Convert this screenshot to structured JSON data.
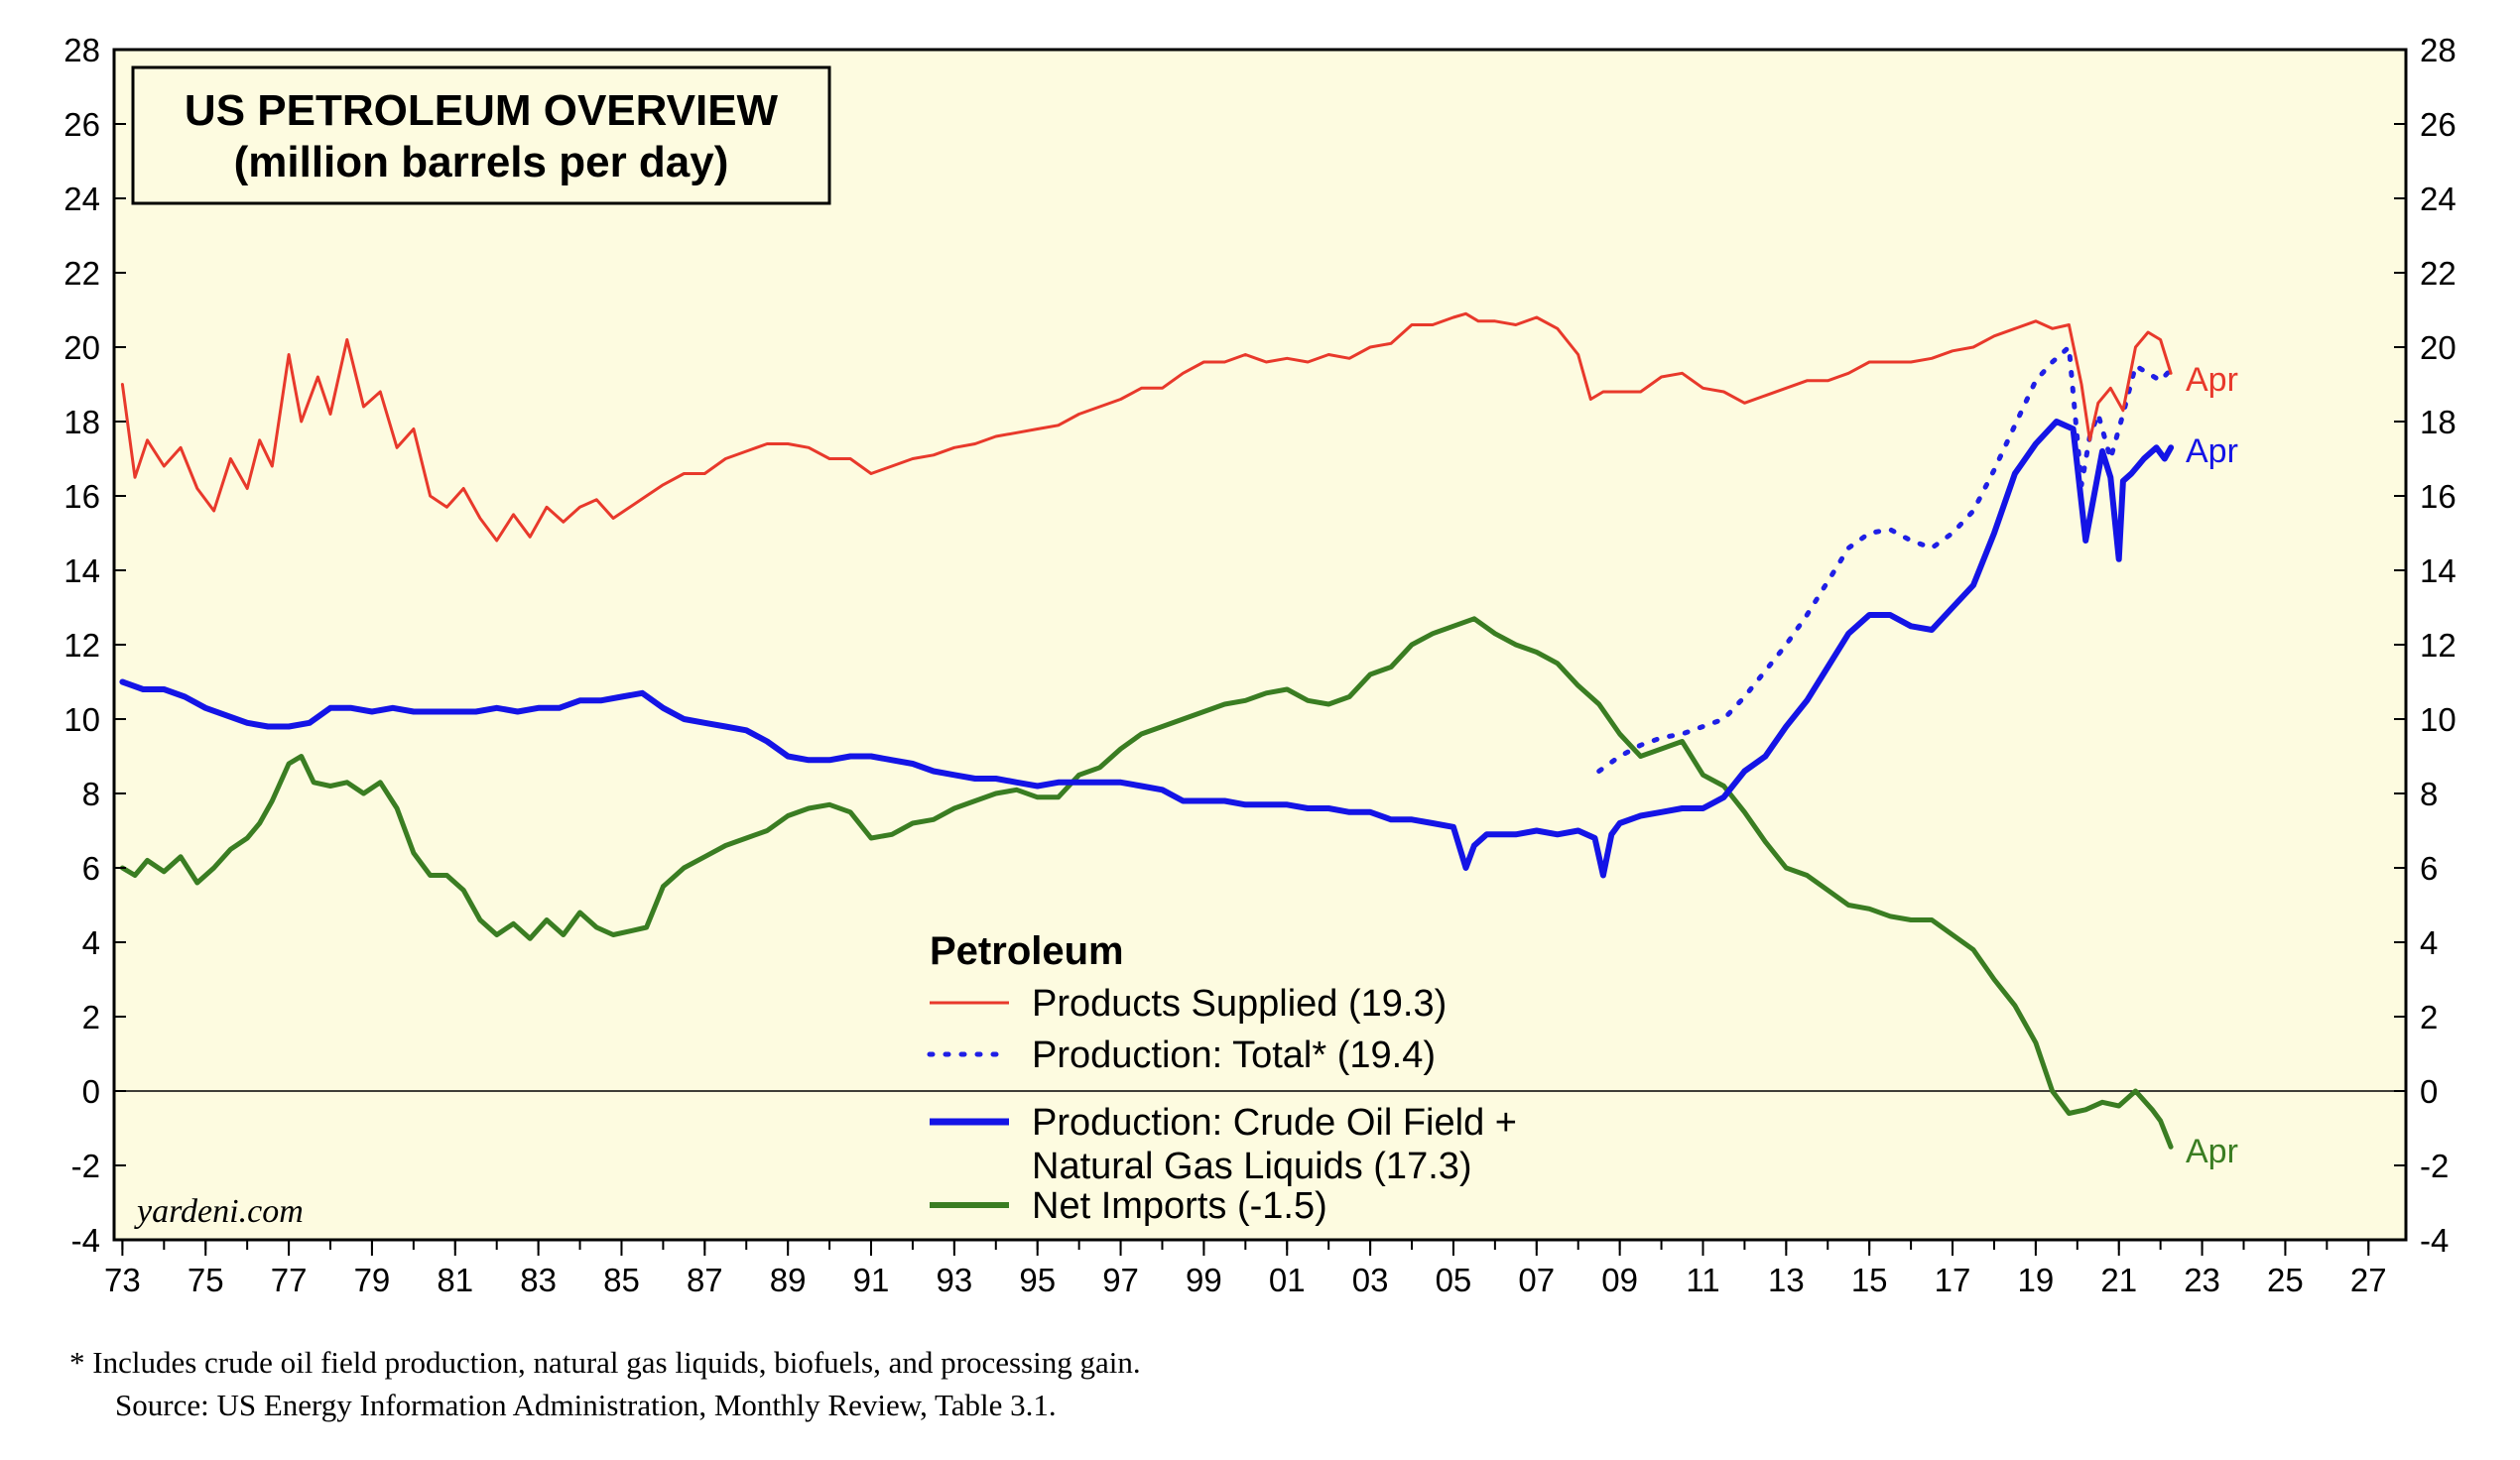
{
  "colors": {
    "plot_bg": "#fdfbe0",
    "products_supplied": "#e8392b",
    "production_total": "#1f1fe6",
    "production_crude": "#1414e6",
    "net_imports": "#3a7d22",
    "axis": "#000000"
  },
  "chart_data": {
    "type": "line",
    "title": [
      "US PETROLEUM OVERVIEW",
      "(million barrels per day)"
    ],
    "xlabel": "",
    "ylabel": "",
    "xlim": [
      1972.8,
      2027.9
    ],
    "ylim": [
      -4,
      28
    ],
    "y_ticks": [
      28,
      26,
      24,
      22,
      20,
      18,
      16,
      14,
      12,
      10,
      8,
      6,
      4,
      2,
      0,
      -2,
      -4
    ],
    "x_tick_labels": [
      "73",
      "75",
      "77",
      "79",
      "81",
      "83",
      "85",
      "87",
      "89",
      "91",
      "93",
      "95",
      "97",
      "99",
      "01",
      "03",
      "05",
      "07",
      "09",
      "11",
      "13",
      "15",
      "17",
      "19",
      "21",
      "23",
      "25",
      "27"
    ],
    "x_tick_years": [
      1973,
      1975,
      1977,
      1979,
      1981,
      1983,
      1985,
      1987,
      1989,
      1991,
      1993,
      1995,
      1997,
      1999,
      2001,
      2003,
      2005,
      2007,
      2009,
      2011,
      2013,
      2015,
      2017,
      2019,
      2021,
      2023,
      2025,
      2027
    ],
    "zero_line": true,
    "legend": {
      "title": "Petroleum",
      "placement": "bottom-center"
    },
    "series": [
      {
        "name": "Products Supplied (19.3)",
        "style": "solid-thin",
        "end_label": "Apr",
        "x": [
          1973.0,
          1973.3,
          1973.6,
          1974.0,
          1974.4,
          1974.8,
          1975.2,
          1975.6,
          1976.0,
          1976.3,
          1976.6,
          1977.0,
          1977.3,
          1977.7,
          1978.0,
          1978.4,
          1978.8,
          1979.2,
          1979.6,
          1980.0,
          1980.4,
          1980.8,
          1981.2,
          1981.6,
          1982.0,
          1982.4,
          1982.8,
          1983.2,
          1983.6,
          1984.0,
          1984.4,
          1984.8,
          1985.2,
          1985.6,
          1986.0,
          1986.5,
          1987.0,
          1987.5,
          1988.0,
          1988.5,
          1989.0,
          1989.5,
          1990.0,
          1990.5,
          1991.0,
          1991.5,
          1992.0,
          1992.5,
          1993.0,
          1993.5,
          1994.0,
          1994.5,
          1995.0,
          1995.5,
          1996.0,
          1996.5,
          1997.0,
          1997.5,
          1998.0,
          1998.5,
          1999.0,
          1999.5,
          2000.0,
          2000.5,
          2001.0,
          2001.5,
          2002.0,
          2002.5,
          2003.0,
          2003.5,
          2004.0,
          2004.5,
          2005.0,
          2005.3,
          2005.6,
          2006.0,
          2006.5,
          2007.0,
          2007.5,
          2008.0,
          2008.3,
          2008.6,
          2009.0,
          2009.5,
          2010.0,
          2010.5,
          2011.0,
          2011.5,
          2012.0,
          2012.5,
          2013.0,
          2013.5,
          2014.0,
          2014.5,
          2015.0,
          2015.5,
          2016.0,
          2016.5,
          2017.0,
          2017.5,
          2018.0,
          2018.5,
          2019.0,
          2019.4,
          2019.8,
          2020.1,
          2020.3,
          2020.5,
          2020.8,
          2021.1,
          2021.4,
          2021.7,
          2022.0,
          2022.25
        ],
        "values": [
          19.0,
          16.5,
          17.5,
          16.8,
          17.3,
          16.2,
          15.6,
          17.0,
          16.2,
          17.5,
          16.8,
          19.8,
          18.0,
          19.2,
          18.2,
          20.2,
          18.4,
          18.8,
          17.3,
          17.8,
          16.0,
          15.7,
          16.2,
          15.4,
          14.8,
          15.5,
          14.9,
          15.7,
          15.3,
          15.7,
          15.9,
          15.4,
          15.7,
          16.0,
          16.3,
          16.6,
          16.6,
          17.0,
          17.2,
          17.4,
          17.4,
          17.3,
          17.0,
          17.0,
          16.6,
          16.8,
          17.0,
          17.1,
          17.3,
          17.4,
          17.6,
          17.7,
          17.8,
          17.9,
          18.2,
          18.4,
          18.6,
          18.9,
          18.9,
          19.3,
          19.6,
          19.6,
          19.8,
          19.6,
          19.7,
          19.6,
          19.8,
          19.7,
          20.0,
          20.1,
          20.6,
          20.6,
          20.8,
          20.9,
          20.7,
          20.7,
          20.6,
          20.8,
          20.5,
          19.8,
          18.6,
          18.8,
          18.8,
          18.8,
          19.2,
          19.3,
          18.9,
          18.8,
          18.5,
          18.7,
          18.9,
          19.1,
          19.1,
          19.3,
          19.6,
          19.6,
          19.6,
          19.7,
          19.9,
          20.0,
          20.3,
          20.5,
          20.7,
          20.5,
          20.6,
          19.0,
          17.5,
          18.5,
          18.9,
          18.3,
          20.0,
          20.4,
          20.2,
          19.3
        ]
      },
      {
        "name": "Production: Total* (19.4)",
        "style": "dotted",
        "end_label": "",
        "x": [
          2008.5,
          2009.0,
          2009.5,
          2010.0,
          2010.5,
          2011.0,
          2011.5,
          2012.0,
          2012.5,
          2013.0,
          2013.5,
          2014.0,
          2014.5,
          2015.0,
          2015.5,
          2016.0,
          2016.5,
          2017.0,
          2017.5,
          2018.0,
          2018.5,
          2019.0,
          2019.4,
          2019.8,
          2020.1,
          2020.3,
          2020.5,
          2020.8,
          2021.1,
          2021.4,
          2021.7,
          2022.0,
          2022.25
        ],
        "values": [
          8.6,
          9.0,
          9.3,
          9.5,
          9.6,
          9.8,
          10.0,
          10.6,
          11.3,
          12.0,
          12.8,
          13.7,
          14.6,
          15.0,
          15.1,
          14.8,
          14.6,
          15.0,
          15.6,
          16.7,
          17.9,
          19.1,
          19.6,
          20.0,
          16.3,
          17.6,
          18.2,
          17.0,
          18.2,
          19.5,
          19.3,
          19.1,
          19.4
        ]
      },
      {
        "name": "Production: Crude Oil Field + Natural Gas Liquids (17.3)",
        "style": "solid-thick",
        "end_label": "Apr",
        "x": [
          1973.0,
          1973.5,
          1974.0,
          1974.5,
          1975.0,
          1975.5,
          1976.0,
          1976.5,
          1977.0,
          1977.5,
          1978.0,
          1978.5,
          1979.0,
          1979.5,
          1980.0,
          1980.5,
          1981.0,
          1981.5,
          1982.0,
          1982.5,
          1983.0,
          1983.5,
          1984.0,
          1984.5,
          1985.0,
          1985.5,
          1986.0,
          1986.5,
          1987.0,
          1987.5,
          1988.0,
          1988.5,
          1989.0,
          1989.5,
          1990.0,
          1990.5,
          1991.0,
          1991.5,
          1992.0,
          1992.5,
          1993.0,
          1993.5,
          1994.0,
          1994.5,
          1995.0,
          1995.5,
          1996.0,
          1996.5,
          1997.0,
          1997.5,
          1998.0,
          1998.5,
          1999.0,
          1999.5,
          2000.0,
          2000.5,
          2001.0,
          2001.5,
          2002.0,
          2002.5,
          2003.0,
          2003.5,
          2004.0,
          2004.5,
          2005.0,
          2005.3,
          2005.5,
          2005.8,
          2006.0,
          2006.5,
          2007.0,
          2007.5,
          2008.0,
          2008.4,
          2008.6,
          2008.8,
          2009.0,
          2009.5,
          2010.0,
          2010.5,
          2011.0,
          2011.5,
          2012.0,
          2012.5,
          2013.0,
          2013.5,
          2014.0,
          2014.5,
          2015.0,
          2015.5,
          2016.0,
          2016.5,
          2017.0,
          2017.5,
          2018.0,
          2018.5,
          2019.0,
          2019.5,
          2019.9,
          2020.2,
          2020.4,
          2020.6,
          2020.8,
          2021.0,
          2021.1,
          2021.3,
          2021.6,
          2021.9,
          2022.1,
          2022.25
        ],
        "values": [
          11.0,
          10.8,
          10.8,
          10.6,
          10.3,
          10.1,
          9.9,
          9.8,
          9.8,
          9.9,
          10.3,
          10.3,
          10.2,
          10.3,
          10.2,
          10.2,
          10.2,
          10.2,
          10.3,
          10.2,
          10.3,
          10.3,
          10.5,
          10.5,
          10.6,
          10.7,
          10.3,
          10.0,
          9.9,
          9.8,
          9.7,
          9.4,
          9.0,
          8.9,
          8.9,
          9.0,
          9.0,
          8.9,
          8.8,
          8.6,
          8.5,
          8.4,
          8.4,
          8.3,
          8.2,
          8.3,
          8.3,
          8.3,
          8.3,
          8.2,
          8.1,
          7.8,
          7.8,
          7.8,
          7.7,
          7.7,
          7.7,
          7.6,
          7.6,
          7.5,
          7.5,
          7.3,
          7.3,
          7.2,
          7.1,
          6.0,
          6.6,
          6.9,
          6.9,
          6.9,
          7.0,
          6.9,
          7.0,
          6.8,
          5.8,
          6.9,
          7.2,
          7.4,
          7.5,
          7.6,
          7.6,
          7.9,
          8.6,
          9.0,
          9.8,
          10.5,
          11.4,
          12.3,
          12.8,
          12.8,
          12.5,
          12.4,
          13.0,
          13.6,
          15.0,
          16.6,
          17.4,
          18.0,
          17.8,
          14.8,
          16.0,
          17.2,
          16.5,
          14.3,
          16.4,
          16.6,
          17.0,
          17.3,
          17.0,
          17.3
        ]
      },
      {
        "name": "Net Imports (-1.5)",
        "style": "solid-medium",
        "end_label": "Apr",
        "x": [
          1973.0,
          1973.3,
          1973.6,
          1974.0,
          1974.4,
          1974.8,
          1975.2,
          1975.6,
          1976.0,
          1976.3,
          1976.6,
          1977.0,
          1977.3,
          1977.6,
          1978.0,
          1978.4,
          1978.8,
          1979.2,
          1979.6,
          1980.0,
          1980.4,
          1980.8,
          1981.2,
          1981.6,
          1982.0,
          1982.4,
          1982.8,
          1983.2,
          1983.6,
          1984.0,
          1984.4,
          1984.8,
          1985.2,
          1985.6,
          1986.0,
          1986.5,
          1987.0,
          1987.5,
          1988.0,
          1988.5,
          1989.0,
          1989.5,
          1990.0,
          1990.5,
          1991.0,
          1991.5,
          1992.0,
          1992.5,
          1993.0,
          1993.5,
          1994.0,
          1994.5,
          1995.0,
          1995.5,
          1996.0,
          1996.5,
          1997.0,
          1997.5,
          1998.0,
          1998.5,
          1999.0,
          1999.5,
          2000.0,
          2000.5,
          2001.0,
          2001.5,
          2002.0,
          2002.5,
          2003.0,
          2003.5,
          2004.0,
          2004.5,
          2005.0,
          2005.5,
          2006.0,
          2006.5,
          2007.0,
          2007.5,
          2008.0,
          2008.5,
          2009.0,
          2009.5,
          2010.0,
          2010.5,
          2011.0,
          2011.5,
          2012.0,
          2012.5,
          2013.0,
          2013.5,
          2014.0,
          2014.5,
          2015.0,
          2015.5,
          2016.0,
          2016.5,
          2017.0,
          2017.5,
          2018.0,
          2018.5,
          2019.0,
          2019.4,
          2019.8,
          2020.2,
          2020.6,
          2021.0,
          2021.4,
          2021.8,
          2022.0,
          2022.25
        ],
        "values": [
          6.0,
          5.8,
          6.2,
          5.9,
          6.3,
          5.6,
          6.0,
          6.5,
          6.8,
          7.2,
          7.8,
          8.8,
          9.0,
          8.3,
          8.2,
          8.3,
          8.0,
          8.3,
          7.6,
          6.4,
          5.8,
          5.8,
          5.4,
          4.6,
          4.2,
          4.5,
          4.1,
          4.6,
          4.2,
          4.8,
          4.4,
          4.2,
          4.3,
          4.4,
          5.5,
          6.0,
          6.3,
          6.6,
          6.8,
          7.0,
          7.4,
          7.6,
          7.7,
          7.5,
          6.8,
          6.9,
          7.2,
          7.3,
          7.6,
          7.8,
          8.0,
          8.1,
          7.9,
          7.9,
          8.5,
          8.7,
          9.2,
          9.6,
          9.8,
          10.0,
          10.2,
          10.4,
          10.5,
          10.7,
          10.8,
          10.5,
          10.4,
          10.6,
          11.2,
          11.4,
          12.0,
          12.3,
          12.5,
          12.7,
          12.3,
          12.0,
          11.8,
          11.5,
          10.9,
          10.4,
          9.6,
          9.0,
          9.2,
          9.4,
          8.5,
          8.2,
          7.5,
          6.7,
          6.0,
          5.8,
          5.4,
          5.0,
          4.9,
          4.7,
          4.6,
          4.6,
          4.2,
          3.8,
          3.0,
          2.3,
          1.3,
          0.0,
          -0.6,
          -0.5,
          -0.3,
          -0.4,
          0.0,
          -0.5,
          -0.8,
          -1.5
        ]
      }
    ]
  },
  "text": {
    "watermark": "yardeni.com",
    "footnote": "*  Includes crude oil field production, natural gas liquids, biofuels, and processing gain.",
    "source": "Source: US Energy Information Administration, Monthly Review, Table 3.1."
  }
}
